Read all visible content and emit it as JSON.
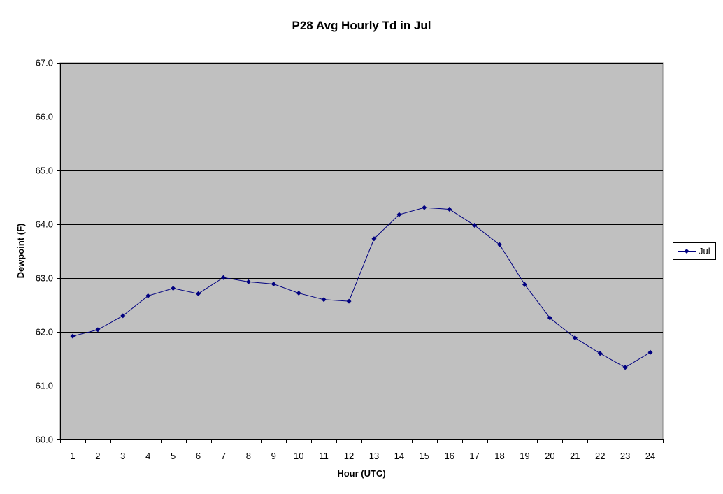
{
  "chart_data": {
    "type": "line",
    "title": "P28 Avg Hourly Td in Jul",
    "xlabel": "Hour (UTC)",
    "ylabel": "Dewpoint (F)",
    "ylim": [
      60.0,
      67.0
    ],
    "yticks": [
      "60.0",
      "61.0",
      "62.0",
      "63.0",
      "64.0",
      "65.0",
      "66.0",
      "67.0"
    ],
    "categories": [
      "1",
      "2",
      "3",
      "4",
      "5",
      "6",
      "7",
      "8",
      "9",
      "10",
      "11",
      "12",
      "13",
      "14",
      "15",
      "16",
      "17",
      "18",
      "19",
      "20",
      "21",
      "22",
      "23",
      "24"
    ],
    "series": [
      {
        "name": "Jul",
        "values": [
          61.92,
          62.04,
          62.3,
          62.67,
          62.81,
          62.71,
          63.01,
          62.93,
          62.89,
          62.72,
          62.6,
          62.57,
          63.73,
          64.18,
          64.31,
          64.28,
          63.98,
          63.62,
          62.88,
          62.26,
          61.89,
          61.6,
          61.34,
          61.62
        ]
      }
    ],
    "grid": true,
    "legend": "right",
    "colors": {
      "plot_background": "#c0c0c0",
      "series": "#000080",
      "grid": "#000000"
    }
  }
}
